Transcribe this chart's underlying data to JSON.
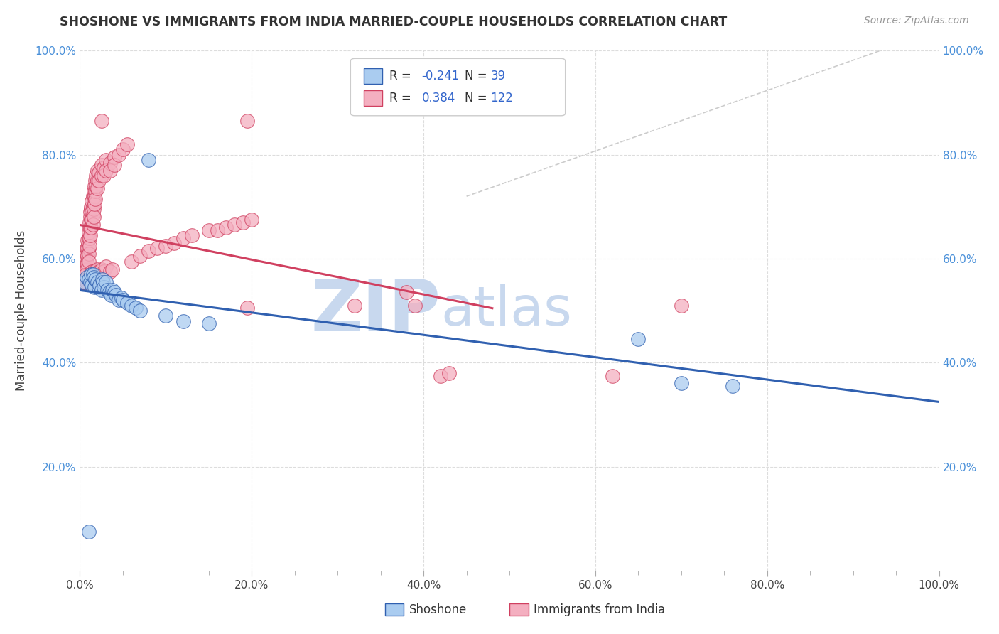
{
  "title": "SHOSHONE VS IMMIGRANTS FROM INDIA MARRIED-COUPLE HOUSEHOLDS CORRELATION CHART",
  "source": "Source: ZipAtlas.com",
  "ylabel": "Married-couple Households",
  "blue_R": -0.241,
  "blue_N": 39,
  "pink_R": 0.384,
  "pink_N": 122,
  "blue_color": "#aaccf0",
  "pink_color": "#f4afc0",
  "blue_line_color": "#3060b0",
  "pink_line_color": "#d04060",
  "dashed_line_color": "#cccccc",
  "watermark_zip": "ZIP",
  "watermark_atlas": "atlas",
  "watermark_color": "#c8d8ee",
  "xlim": [
    0.0,
    1.0
  ],
  "ylim": [
    0.0,
    1.0
  ],
  "blue_scatter": [
    [
      0.005,
      0.555
    ],
    [
      0.008,
      0.565
    ],
    [
      0.01,
      0.56
    ],
    [
      0.012,
      0.555
    ],
    [
      0.013,
      0.57
    ],
    [
      0.014,
      0.55
    ],
    [
      0.015,
      0.57
    ],
    [
      0.016,
      0.565
    ],
    [
      0.017,
      0.545
    ],
    [
      0.018,
      0.56
    ],
    [
      0.02,
      0.555
    ],
    [
      0.022,
      0.545
    ],
    [
      0.023,
      0.55
    ],
    [
      0.025,
      0.54
    ],
    [
      0.026,
      0.56
    ],
    [
      0.027,
      0.555
    ],
    [
      0.028,
      0.545
    ],
    [
      0.03,
      0.555
    ],
    [
      0.032,
      0.54
    ],
    [
      0.034,
      0.535
    ],
    [
      0.036,
      0.53
    ],
    [
      0.038,
      0.54
    ],
    [
      0.04,
      0.535
    ],
    [
      0.042,
      0.53
    ],
    [
      0.045,
      0.52
    ],
    [
      0.048,
      0.525
    ],
    [
      0.05,
      0.52
    ],
    [
      0.055,
      0.515
    ],
    [
      0.06,
      0.51
    ],
    [
      0.065,
      0.505
    ],
    [
      0.07,
      0.5
    ],
    [
      0.08,
      0.79
    ],
    [
      0.1,
      0.49
    ],
    [
      0.12,
      0.48
    ],
    [
      0.15,
      0.475
    ],
    [
      0.65,
      0.445
    ],
    [
      0.7,
      0.36
    ],
    [
      0.76,
      0.355
    ],
    [
      0.01,
      0.075
    ]
  ],
  "pink_scatter": [
    [
      0.002,
      0.56
    ],
    [
      0.003,
      0.565
    ],
    [
      0.004,
      0.57
    ],
    [
      0.004,
      0.555
    ],
    [
      0.005,
      0.56
    ],
    [
      0.005,
      0.575
    ],
    [
      0.006,
      0.58
    ],
    [
      0.006,
      0.565
    ],
    [
      0.006,
      0.59
    ],
    [
      0.007,
      0.595
    ],
    [
      0.007,
      0.575
    ],
    [
      0.007,
      0.6
    ],
    [
      0.008,
      0.61
    ],
    [
      0.008,
      0.59
    ],
    [
      0.008,
      0.58
    ],
    [
      0.008,
      0.62
    ],
    [
      0.009,
      0.62
    ],
    [
      0.009,
      0.605
    ],
    [
      0.009,
      0.59
    ],
    [
      0.009,
      0.635
    ],
    [
      0.01,
      0.64
    ],
    [
      0.01,
      0.62
    ],
    [
      0.01,
      0.61
    ],
    [
      0.01,
      0.65
    ],
    [
      0.01,
      0.595
    ],
    [
      0.011,
      0.66
    ],
    [
      0.011,
      0.64
    ],
    [
      0.011,
      0.625
    ],
    [
      0.011,
      0.67
    ],
    [
      0.012,
      0.68
    ],
    [
      0.012,
      0.66
    ],
    [
      0.012,
      0.645
    ],
    [
      0.012,
      0.69
    ],
    [
      0.013,
      0.695
    ],
    [
      0.013,
      0.675
    ],
    [
      0.013,
      0.66
    ],
    [
      0.013,
      0.7
    ],
    [
      0.014,
      0.71
    ],
    [
      0.014,
      0.69
    ],
    [
      0.014,
      0.675
    ],
    [
      0.015,
      0.72
    ],
    [
      0.015,
      0.7
    ],
    [
      0.015,
      0.685
    ],
    [
      0.015,
      0.665
    ],
    [
      0.016,
      0.73
    ],
    [
      0.016,
      0.71
    ],
    [
      0.016,
      0.695
    ],
    [
      0.016,
      0.68
    ],
    [
      0.017,
      0.74
    ],
    [
      0.017,
      0.72
    ],
    [
      0.017,
      0.705
    ],
    [
      0.018,
      0.75
    ],
    [
      0.018,
      0.73
    ],
    [
      0.018,
      0.715
    ],
    [
      0.019,
      0.76
    ],
    [
      0.019,
      0.74
    ],
    [
      0.02,
      0.77
    ],
    [
      0.02,
      0.75
    ],
    [
      0.02,
      0.735
    ],
    [
      0.022,
      0.765
    ],
    [
      0.022,
      0.75
    ],
    [
      0.025,
      0.78
    ],
    [
      0.025,
      0.76
    ],
    [
      0.028,
      0.775
    ],
    [
      0.028,
      0.76
    ],
    [
      0.03,
      0.79
    ],
    [
      0.03,
      0.77
    ],
    [
      0.035,
      0.785
    ],
    [
      0.035,
      0.77
    ],
    [
      0.04,
      0.795
    ],
    [
      0.04,
      0.78
    ],
    [
      0.045,
      0.8
    ],
    [
      0.05,
      0.81
    ],
    [
      0.055,
      0.82
    ],
    [
      0.003,
      0.555
    ],
    [
      0.006,
      0.568
    ],
    [
      0.007,
      0.56
    ],
    [
      0.008,
      0.555
    ],
    [
      0.01,
      0.56
    ],
    [
      0.011,
      0.555
    ],
    [
      0.012,
      0.57
    ],
    [
      0.013,
      0.56
    ],
    [
      0.014,
      0.575
    ],
    [
      0.015,
      0.565
    ],
    [
      0.016,
      0.575
    ],
    [
      0.017,
      0.565
    ],
    [
      0.018,
      0.57
    ],
    [
      0.02,
      0.58
    ],
    [
      0.022,
      0.575
    ],
    [
      0.025,
      0.58
    ],
    [
      0.028,
      0.575
    ],
    [
      0.03,
      0.585
    ],
    [
      0.035,
      0.575
    ],
    [
      0.038,
      0.58
    ],
    [
      0.06,
      0.595
    ],
    [
      0.07,
      0.605
    ],
    [
      0.08,
      0.615
    ],
    [
      0.09,
      0.62
    ],
    [
      0.1,
      0.625
    ],
    [
      0.11,
      0.63
    ],
    [
      0.12,
      0.64
    ],
    [
      0.13,
      0.645
    ],
    [
      0.15,
      0.655
    ],
    [
      0.16,
      0.655
    ],
    [
      0.17,
      0.66
    ],
    [
      0.18,
      0.665
    ],
    [
      0.19,
      0.67
    ],
    [
      0.2,
      0.675
    ],
    [
      0.025,
      0.865
    ],
    [
      0.195,
      0.865
    ],
    [
      0.195,
      0.505
    ],
    [
      0.32,
      0.51
    ],
    [
      0.38,
      0.535
    ],
    [
      0.39,
      0.51
    ],
    [
      0.42,
      0.375
    ],
    [
      0.43,
      0.38
    ],
    [
      0.62,
      0.375
    ],
    [
      0.7,
      0.51
    ]
  ]
}
